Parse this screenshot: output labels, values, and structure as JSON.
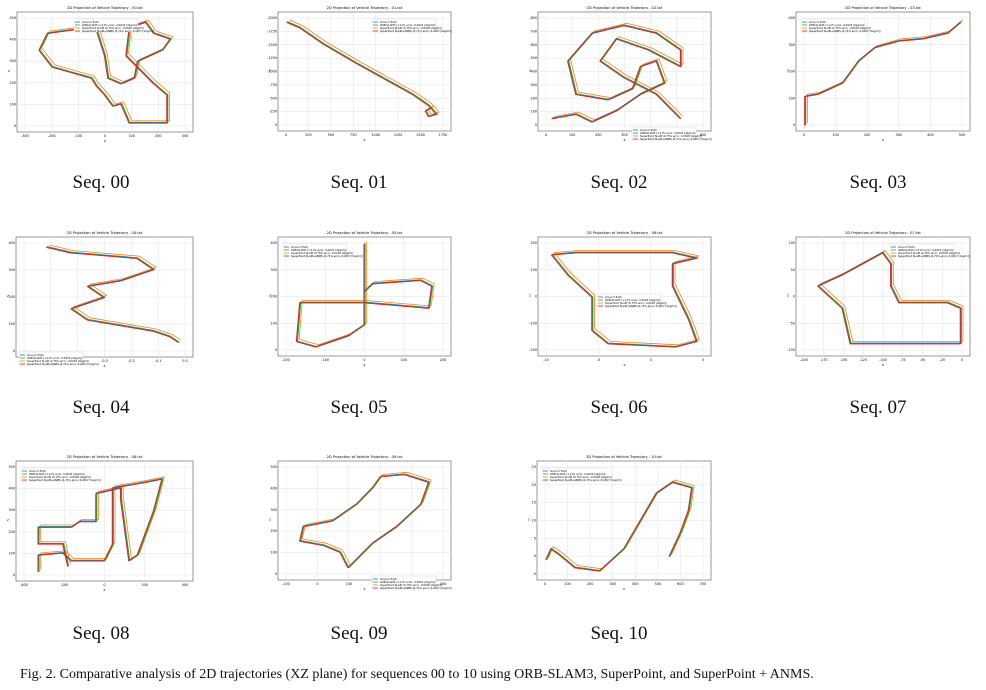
{
  "figure": {
    "caption": "Fig. 2.  Comparative analysis of 2D trajectories (XZ plane) for sequences 00 to 10 using ORB-SLAM3, SuperPoint, and SuperPoint + ANMS.",
    "legend_entries": [
      "Ground Truth",
      "ORB-SLAM3 (1.11% error, 0.0022 [deg/m])",
      "SuperPoint SLAM (0.75% error, 0.0018 [deg/m])",
      "SuperPoint SLAM+ANMS (0.71% error, 0.0017 [deg/m])"
    ],
    "colors": {
      "gt": "#1f77b4",
      "orb": "#2ca02c",
      "sp": "#ff7f0e",
      "anms": "#d62728",
      "grid": "#e2e2e2"
    },
    "axis_label_x": "x",
    "axis_label_z": "z"
  },
  "panels": [
    {
      "id": "00",
      "title": "2D Projection of Vehicle Trajectory - 00.txt",
      "label": "Seq. 00",
      "xticks": [
        "-300",
        "-200",
        "-100",
        "0",
        "100",
        "200",
        "300"
      ],
      "yticks": [
        "0",
        "100",
        "200",
        "300",
        "400",
        "500"
      ]
    },
    {
      "id": "01",
      "title": "2D Projection of Vehicle Trajectory - 01.txt",
      "label": "Seq. 01",
      "xticks": [
        "0",
        "250",
        "500",
        "750",
        "1000",
        "1250",
        "1500",
        "1750"
      ],
      "yticks": [
        "0",
        "-250",
        "-500",
        "-750",
        "-1000",
        "-1250",
        "-1500",
        "-1750",
        "-2000"
      ]
    },
    {
      "id": "02",
      "title": "2D Projection of Vehicle Trajectory - 02.txt",
      "label": "Seq. 02",
      "xticks": [
        "0",
        "100",
        "200",
        "300",
        "400",
        "500",
        "600"
      ],
      "yticks": [
        "0",
        "100",
        "200",
        "300",
        "400",
        "500",
        "600",
        "700",
        "800"
      ]
    },
    {
      "id": "03",
      "title": "2D Projection of Vehicle Trajectory - 03.txt",
      "label": "Seq. 03",
      "xticks": [
        "0",
        "100",
        "200",
        "300",
        "400",
        "500"
      ],
      "yticks": [
        "0",
        "100",
        "200",
        "300",
        "400"
      ]
    },
    {
      "id": "04",
      "title": "2D Projection of Vehicle Trajectory - 04.txt",
      "label": "Seq. 04",
      "xticks": [
        "-0.6",
        "-0.5",
        "-0.4",
        "-0.3",
        "-0.2",
        "-0.1",
        "0.0"
      ],
      "yticks": [
        "0",
        "100",
        "200",
        "300",
        "400"
      ]
    },
    {
      "id": "05",
      "title": "2D Projection of Vehicle Trajectory - 05.txt",
      "label": "Seq. 05",
      "xticks": [
        "-200",
        "-100",
        "0",
        "100",
        "200"
      ],
      "yticks": [
        "0",
        "100",
        "200",
        "300",
        "400"
      ]
    },
    {
      "id": "06",
      "title": "2D Projection of Vehicle Trajectory - 06.txt",
      "label": "Seq. 06",
      "xticks": [
        "-10",
        "-5",
        "0",
        "5"
      ],
      "yticks": [
        "-200",
        "-100",
        "0",
        "100",
        "200"
      ]
    },
    {
      "id": "07",
      "title": "2D Projection of Vehicle Trajectory - 07.txt",
      "label": "Seq. 07",
      "xticks": [
        "-200",
        "-175",
        "-150",
        "-125",
        "-100",
        "-75",
        "-50",
        "-25",
        "0"
      ],
      "yticks": [
        "-100",
        "-50",
        "0",
        "50",
        "100"
      ]
    },
    {
      "id": "08",
      "title": "2D Projection of Vehicle Trajectory - 08.txt",
      "label": "Seq. 08",
      "xticks": [
        "-400",
        "-200",
        "0",
        "200",
        "400"
      ],
      "yticks": [
        "0",
        "100",
        "200",
        "300",
        "400",
        "500"
      ]
    },
    {
      "id": "09",
      "title": "2D Projection of Vehicle Trajectory - 09.txt",
      "label": "Seq. 09",
      "xticks": [
        "-100",
        "0",
        "100",
        "200",
        "300",
        "400"
      ],
      "yticks": [
        "0",
        "100",
        "200",
        "300",
        "400",
        "500"
      ]
    },
    {
      "id": "10",
      "title": "2D Projection of Vehicle Trajectory - 10.txt",
      "label": "Seq. 10",
      "xticks": [
        "0",
        "100",
        "200",
        "300",
        "400",
        "500",
        "600",
        "700"
      ],
      "yticks": [
        "-5",
        "0",
        "5",
        "10",
        "15",
        "20",
        "25"
      ]
    }
  ]
}
